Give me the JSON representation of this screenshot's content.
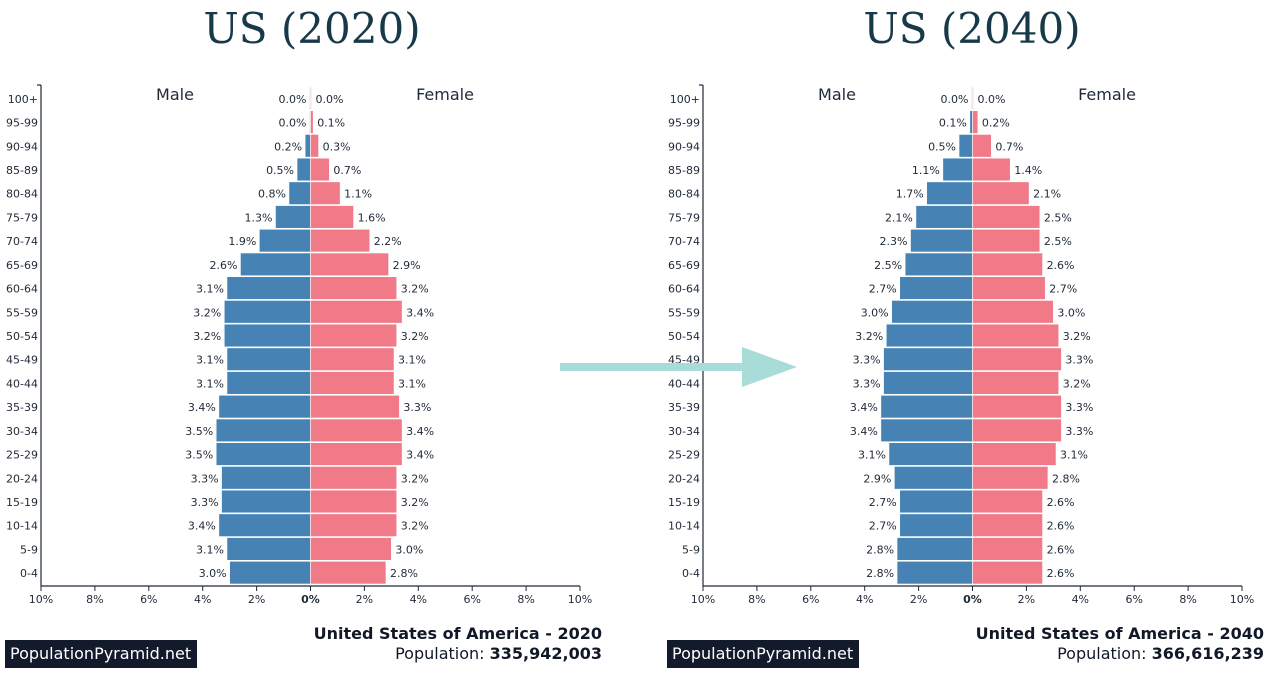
{
  "colors": {
    "male": "#4682b4",
    "female": "#f07a88",
    "title": "#17394a",
    "arrow": "#a8dcd8",
    "brand_bg": "#131a2b"
  },
  "brand_label": "PopulationPyramid.net",
  "chart_data": [
    {
      "type": "bar",
      "orientation": "horizontal-pyramid",
      "title": "US (2020)",
      "subtitle_country": "United States of America - 2020",
      "population_label": "Population:",
      "population_value": "335,942,003",
      "legend": [
        "Male",
        "Female"
      ],
      "categories": [
        "100+",
        "95-99",
        "90-94",
        "85-89",
        "80-84",
        "75-79",
        "70-74",
        "65-69",
        "60-64",
        "55-59",
        "50-54",
        "45-49",
        "40-44",
        "35-39",
        "30-34",
        "25-29",
        "20-24",
        "15-19",
        "10-14",
        "5-9",
        "0-4"
      ],
      "series": [
        {
          "name": "Male",
          "values": [
            0.0,
            0.0,
            0.2,
            0.5,
            0.8,
            1.3,
            1.9,
            2.6,
            3.1,
            3.2,
            3.2,
            3.1,
            3.1,
            3.4,
            3.5,
            3.5,
            3.3,
            3.3,
            3.4,
            3.1,
            3.0
          ]
        },
        {
          "name": "Female",
          "values": [
            0.0,
            0.1,
            0.3,
            0.7,
            1.1,
            1.6,
            2.2,
            2.9,
            3.2,
            3.4,
            3.2,
            3.1,
            3.1,
            3.3,
            3.4,
            3.4,
            3.2,
            3.2,
            3.2,
            3.0,
            2.8
          ]
        }
      ],
      "xticks": [
        "10%",
        "8%",
        "6%",
        "4%",
        "2%",
        "0%",
        "2%",
        "4%",
        "6%",
        "8%",
        "10%"
      ],
      "xlim": [
        -10,
        10
      ],
      "unit": "%"
    },
    {
      "type": "bar",
      "orientation": "horizontal-pyramid",
      "title": "US (2040)",
      "subtitle_country": "United States of America - 2040",
      "population_label": "Population:",
      "population_value": "366,616,239",
      "legend": [
        "Male",
        "Female"
      ],
      "categories": [
        "100+",
        "95-99",
        "90-94",
        "85-89",
        "80-84",
        "75-79",
        "70-74",
        "65-69",
        "60-64",
        "55-59",
        "50-54",
        "45-49",
        "40-44",
        "35-39",
        "30-34",
        "25-29",
        "20-24",
        "15-19",
        "10-14",
        "5-9",
        "0-4"
      ],
      "series": [
        {
          "name": "Male",
          "values": [
            0.0,
            0.1,
            0.5,
            1.1,
            1.7,
            2.1,
            2.3,
            2.5,
            2.7,
            3.0,
            3.2,
            3.3,
            3.3,
            3.4,
            3.4,
            3.1,
            2.9,
            2.7,
            2.7,
            2.8,
            2.8
          ]
        },
        {
          "name": "Female",
          "values": [
            0.0,
            0.2,
            0.7,
            1.4,
            2.1,
            2.5,
            2.5,
            2.6,
            2.7,
            3.0,
            3.2,
            3.3,
            3.2,
            3.3,
            3.3,
            3.1,
            2.8,
            2.6,
            2.6,
            2.6,
            2.6
          ]
        }
      ],
      "xticks": [
        "10%",
        "8%",
        "6%",
        "4%",
        "2%",
        "0%",
        "2%",
        "4%",
        "6%",
        "8%",
        "10%"
      ],
      "xlim": [
        -10,
        10
      ],
      "unit": "%"
    }
  ]
}
